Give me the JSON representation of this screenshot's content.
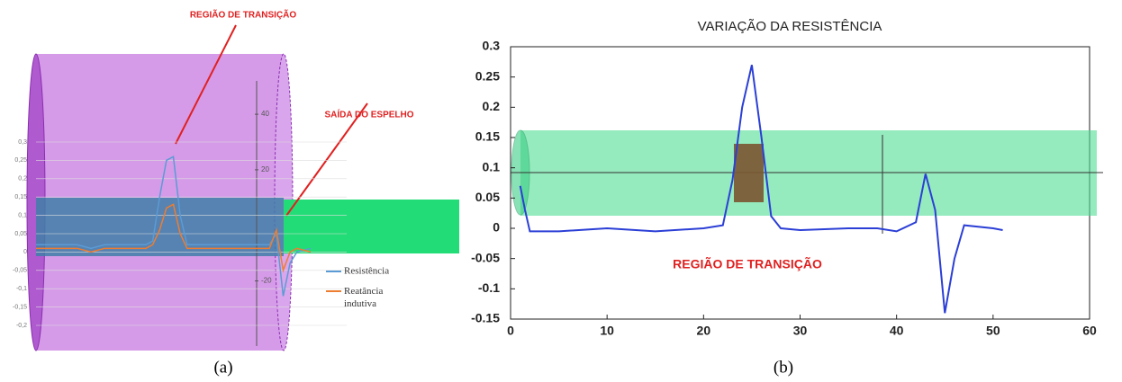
{
  "chart_data": [
    {
      "type": "line",
      "caption": "(a)",
      "annotations": [
        "REGIÃO DE TRANSIÇÃO",
        "SAÍDA DO ESPELHO"
      ],
      "x": [
        0,
        2,
        4,
        6,
        8,
        10,
        12,
        14,
        16,
        17,
        18,
        19,
        20,
        21,
        22,
        26,
        30,
        34,
        35,
        36,
        37,
        38,
        40
      ],
      "xlim": [
        0,
        40
      ],
      "series": [
        {
          "name": "Resistência",
          "color": "#5b9bd5",
          "values": [
            0.02,
            0.02,
            0.02,
            0.02,
            0.01,
            0.02,
            0.02,
            0.02,
            0.02,
            0.03,
            0.15,
            0.25,
            0.26,
            0.1,
            0.02,
            0.02,
            0.02,
            0.02,
            0.05,
            -0.12,
            -0.03,
            0,
            0.01
          ]
        },
        {
          "name": "Reatância indutiva",
          "color": "#ed7d31",
          "values": [
            0.01,
            0.01,
            0.01,
            0.01,
            0.0,
            0.01,
            0.01,
            0.01,
            0.01,
            0.02,
            0.06,
            0.12,
            0.13,
            0.05,
            0.01,
            0.01,
            0.01,
            0.01,
            0.06,
            -0.05,
            0.0,
            0.01,
            0.0
          ]
        }
      ],
      "ylim": [
        -0.2,
        0.3
      ],
      "yticks": [
        {
          "value": 0.3,
          "label": "0,3"
        },
        {
          "value": 0.25,
          "label": "0,25"
        },
        {
          "value": 0.2,
          "label": "0,2"
        },
        {
          "value": 0.15,
          "label": "0,15"
        },
        {
          "value": 0.1,
          "label": "0,1"
        },
        {
          "value": 0.05,
          "label": "0,05"
        },
        0,
        {
          "value": -0.05,
          "label": "-0,05"
        },
        {
          "value": -0.1,
          "label": "-0,1"
        },
        {
          "value": -0.15,
          "label": "-0,15"
        },
        {
          "value": -0.2,
          "label": "-0,2"
        }
      ],
      "y2lim": [
        -36,
        52
      ],
      "y2ticks": [
        -20,
        20,
        40
      ],
      "grid": true
    },
    {
      "type": "line",
      "title": "VARIAÇÃO DA RESISTÊNCIA",
      "caption": "(b)",
      "annotations": [
        "REGIÃO DE TRANSIÇÃO"
      ],
      "x": [
        1,
        1.5,
        2,
        5,
        10,
        15,
        20,
        22,
        23,
        24,
        25,
        26,
        27,
        28,
        30,
        35,
        38,
        40,
        42,
        43,
        44,
        45,
        46,
        47,
        50,
        51
      ],
      "xlim": [
        0,
        60
      ],
      "xticks": [
        0,
        10,
        20,
        30,
        40,
        50,
        60
      ],
      "series": [
        {
          "color": "#2b3fd6",
          "values": [
            0.07,
            0.03,
            -0.005,
            -0.005,
            0,
            -0.005,
            0,
            0.005,
            0.08,
            0.2,
            0.27,
            0.15,
            0.02,
            0,
            -0.003,
            0,
            0,
            -0.005,
            0.01,
            0.09,
            0.03,
            -0.14,
            -0.05,
            0.005,
            0,
            -0.003
          ]
        }
      ],
      "ylim": [
        -0.15,
        0.3
      ],
      "yticks": [
        -0.15,
        -0.1,
        -0.05,
        0,
        0.05,
        0.1,
        0.15,
        0.2,
        0.25,
        0.3
      ]
    }
  ]
}
